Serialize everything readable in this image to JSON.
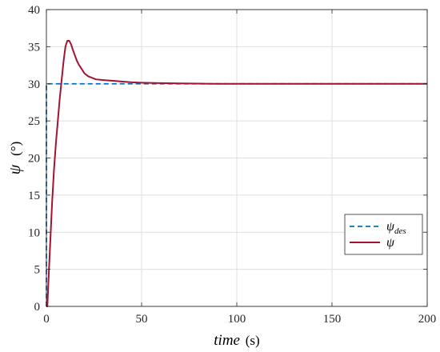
{
  "chart_data": {
    "type": "line",
    "xlabel": {
      "symbol": "time",
      "unit": "(s)"
    },
    "ylabel": {
      "symbol": "ψ",
      "unit": "(°)"
    },
    "xlim": [
      0,
      200
    ],
    "ylim": [
      0,
      40
    ],
    "xticks": [
      "0",
      "50",
      "100",
      "150",
      "200"
    ],
    "yticks": [
      "0",
      "5",
      "10",
      "15",
      "20",
      "25",
      "30",
      "35",
      "40"
    ],
    "grid": true,
    "legend_position": "lower-right",
    "series": [
      {
        "name": "ψ_des",
        "legend_symbol": "ψ",
        "legend_subscript": "des",
        "style": "dashed",
        "color": "#0072BD",
        "x": [
          0,
          0,
          200
        ],
        "y": [
          0,
          30,
          30
        ]
      },
      {
        "name": "ψ",
        "legend_symbol": "ψ",
        "legend_subscript": "",
        "style": "solid",
        "color": "#A2142F",
        "x": [
          0,
          0.5,
          1,
          2,
          3,
          4,
          5,
          6,
          7,
          8,
          9,
          10,
          11,
          12,
          13,
          14,
          15,
          16,
          17,
          18,
          19,
          20,
          22,
          24,
          26,
          28,
          30,
          35,
          40,
          45,
          50,
          60,
          70,
          80,
          90,
          100,
          120,
          140,
          160,
          180,
          200
        ],
        "y": [
          0,
          0,
          3,
          8.5,
          14,
          18.5,
          22,
          25,
          28,
          30.5,
          33,
          35,
          35.8,
          35.8,
          35.3,
          34.5,
          33.8,
          33.1,
          32.6,
          32.2,
          31.8,
          31.4,
          31.0,
          30.8,
          30.6,
          30.55,
          30.5,
          30.4,
          30.3,
          30.2,
          30.15,
          30.1,
          30.05,
          30.02,
          30.0,
          30.0,
          30.0,
          30.0,
          30.0,
          30.0,
          30.0
        ]
      }
    ]
  }
}
